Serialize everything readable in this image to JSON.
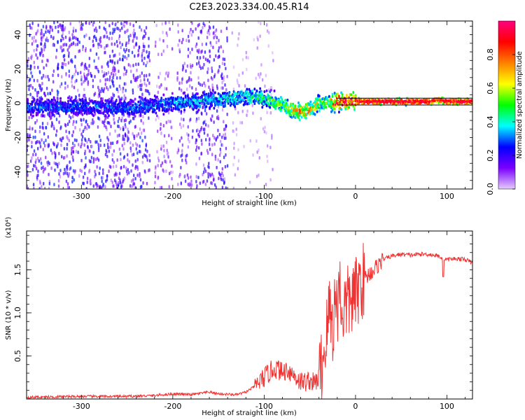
{
  "title": "C2E3.2023.334.00.45.R14",
  "chart_data": [
    {
      "type": "heatmap",
      "xlabel": "Height of straight line (km)",
      "ylabel": "Frequency (Hz)",
      "xlim": [
        -360,
        128
      ],
      "ylim": [
        -50,
        48
      ],
      "xticks": [
        -300,
        -200,
        -100,
        0,
        100
      ],
      "yticks": [
        -40,
        -20,
        0,
        20,
        40
      ],
      "colorbar": {
        "label": "Normalized spectral amplitude",
        "range": [
          0,
          1
        ],
        "ticks": [
          0.0,
          0.2,
          0.4,
          0.6,
          0.8
        ],
        "tick_labels": [
          "0.0",
          "0.2",
          "0.4",
          "0.6",
          "0.8"
        ],
        "colormap": [
          "#e6ccff",
          "#7a00ff",
          "#0000ff",
          "#00ffff",
          "#00ff00",
          "#ffff00",
          "#ff8000",
          "#ff0000",
          "#ff0080"
        ]
      },
      "ridge": {
        "x": [
          -360,
          -300,
          -250,
          -200,
          -150,
          -120,
          -100,
          -80,
          -70,
          -60,
          -50,
          -40,
          -30,
          -20,
          0,
          50,
          80,
          90,
          100,
          128
        ],
        "y": [
          -2,
          -2,
          -3,
          0,
          2,
          4,
          3,
          -1,
          -4,
          -5,
          -4,
          0,
          0,
          1,
          1,
          1,
          1,
          2,
          1,
          1
        ],
        "peak_amplitude": [
          0.3,
          0.3,
          0.3,
          0.35,
          0.4,
          0.45,
          0.5,
          0.55,
          0.65,
          0.8,
          0.75,
          0.6,
          0.6,
          0.95,
          0.95,
          0.95,
          0.95,
          0.85,
          0.95,
          0.95
        ]
      },
      "noise_regions": [
        {
          "x": [
            -360,
            -225
          ],
          "amplitude": 0.2
        },
        {
          "x": [
            -220,
            -200
          ],
          "amplitude": 0.1
        },
        {
          "x": [
            -195,
            -178
          ],
          "amplitude": 0.15
        },
        {
          "x": [
            -175,
            -140
          ],
          "amplitude": 0.18
        },
        {
          "x": [
            -135,
            -90
          ],
          "amplitude": 0.05
        }
      ]
    },
    {
      "type": "line",
      "xlabel": "Height of straight line (km)",
      "ylabel": "SNR (10 * v/v)",
      "y_multiplier": "(x10⁴)",
      "xlim": [
        -360,
        128
      ],
      "ylim": [
        0,
        1.95
      ],
      "xticks": [
        -300,
        -200,
        -100,
        0,
        100
      ],
      "yticks": [
        0.5,
        1.0,
        1.5
      ],
      "ytick_labels": [
        "0.5",
        "1.0",
        "1.5"
      ],
      "series": [
        {
          "color": "#ee3333",
          "x": [
            -360,
            -300,
            -250,
            -220,
            -200,
            -180,
            -160,
            -150,
            -130,
            -120,
            -110,
            -100,
            -95,
            -90,
            -85,
            -80,
            -75,
            -70,
            -65,
            -60,
            -55,
            -50,
            -45,
            -40,
            -35,
            -30,
            -28,
            -25,
            -22,
            -20,
            -18,
            -15,
            -10,
            -5,
            0,
            5,
            10,
            20,
            30,
            40,
            50,
            60,
            70,
            80,
            90,
            95,
            100,
            110,
            120,
            128
          ],
          "y": [
            0.02,
            0.03,
            0.03,
            0.04,
            0.06,
            0.05,
            0.08,
            0.06,
            0.05,
            0.08,
            0.15,
            0.25,
            0.3,
            0.35,
            0.35,
            0.3,
            0.35,
            0.3,
            0.25,
            0.2,
            0.2,
            0.22,
            0.18,
            0.25,
            0.5,
            0.9,
            1.1,
            0.8,
            1.2,
            1.0,
            1.4,
            1.0,
            1.1,
            1.15,
            1.2,
            1.35,
            1.4,
            1.5,
            1.62,
            1.66,
            1.68,
            1.67,
            1.68,
            1.68,
            1.66,
            1.64,
            1.62,
            1.63,
            1.62,
            1.58
          ]
        }
      ]
    }
  ]
}
